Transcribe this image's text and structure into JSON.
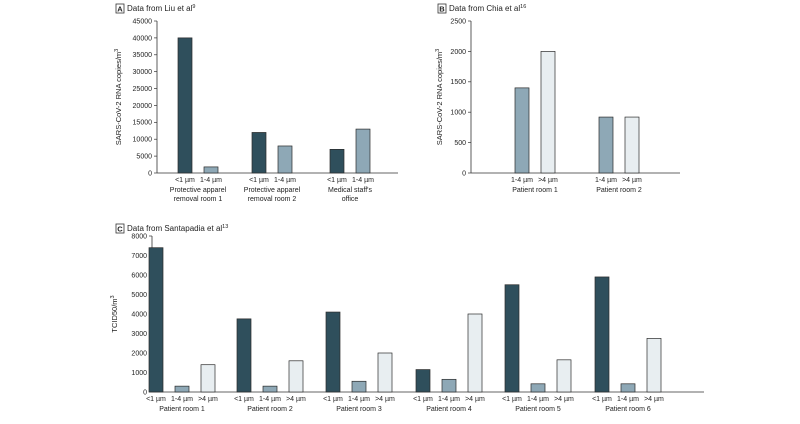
{
  "colors": {
    "lt1": "#2f4f5c",
    "r1to4": "#8ea8b6",
    "gt4": "#e8eef1",
    "outline": "#2b2b2b"
  },
  "chart_data": [
    {
      "panel": "A",
      "type": "bar",
      "title": "Data from Liu et al",
      "title_sup": "9",
      "ylabel": "SARS-CoV-2 RNA copies/m",
      "ylabel_sup": "3",
      "ylim": [
        0,
        45000
      ],
      "yticks": [
        0,
        5000,
        10000,
        15000,
        20000,
        25000,
        30000,
        35000,
        40000,
        45000
      ],
      "ytick_labels": [
        "0",
        "5000",
        "10000",
        "15000",
        "20000",
        "25000",
        "30000",
        "35000",
        "40000",
        "45000"
      ],
      "groups": [
        {
          "label_lines": [
            "Protective apparel",
            "removal room 1"
          ],
          "bars": [
            {
              "size": "<1 µm",
              "color": "lt1",
              "value": 40000
            },
            {
              "size": "1-4 µm",
              "color": "r1to4",
              "value": 1800
            }
          ]
        },
        {
          "label_lines": [
            "Protective apparel",
            "removal room 2"
          ],
          "bars": [
            {
              "size": "<1 µm",
              "color": "lt1",
              "value": 12000
            },
            {
              "size": "1-4 µm",
              "color": "r1to4",
              "value": 8000
            }
          ]
        },
        {
          "label_lines": [
            "Medical staff's",
            "office"
          ],
          "bars": [
            {
              "size": "<1 µm",
              "color": "lt1",
              "value": 7000
            },
            {
              "size": "1-4 µm",
              "color": "r1to4",
              "value": 13000
            }
          ]
        }
      ]
    },
    {
      "panel": "B",
      "type": "bar",
      "title": "Data from Chia et al",
      "title_sup": "16",
      "ylabel": "SARS-CoV-2 RNA copies/m",
      "ylabel_sup": "3",
      "ylim": [
        0,
        2500
      ],
      "yticks": [
        0,
        500,
        1000,
        1500,
        2000,
        2500
      ],
      "ytick_labels": [
        "0",
        "500",
        "1000",
        "1500",
        "2000",
        "2500"
      ],
      "groups": [
        {
          "label_lines": [
            "Patient room 1"
          ],
          "bars": [
            {
              "size": "1-4 µm",
              "color": "r1to4",
              "value": 1400
            },
            {
              "size": ">4 µm",
              "color": "gt4",
              "value": 2000
            }
          ]
        },
        {
          "label_lines": [
            "Patient room 2"
          ],
          "bars": [
            {
              "size": "1-4 µm",
              "color": "r1to4",
              "value": 920
            },
            {
              "size": ">4 µm",
              "color": "gt4",
              "value": 920
            }
          ]
        }
      ]
    },
    {
      "panel": "C",
      "type": "bar",
      "title": "Data from Santapadia et al",
      "title_sup": "13",
      "ylabel": "TCID50/m",
      "ylabel_sup": "3",
      "ylim": [
        0,
        8000
      ],
      "yticks": [
        0,
        1000,
        2000,
        3000,
        4000,
        5000,
        6000,
        7000,
        8000
      ],
      "ytick_labels": [
        "0",
        "1000",
        "2000",
        "3000",
        "4000",
        "5000",
        "6000",
        "7000",
        "8000"
      ],
      "groups": [
        {
          "label_lines": [
            "Patient room 1"
          ],
          "bars": [
            {
              "size": "<1 µm",
              "color": "lt1",
              "value": 7400
            },
            {
              "size": "1-4 µm",
              "color": "r1to4",
              "value": 300
            },
            {
              "size": ">4 µm",
              "color": "gt4",
              "value": 1400
            }
          ]
        },
        {
          "label_lines": [
            "Patient room 2"
          ],
          "bars": [
            {
              "size": "<1 µm",
              "color": "lt1",
              "value": 3750
            },
            {
              "size": "1-4 µm",
              "color": "r1to4",
              "value": 300
            },
            {
              "size": ">4 µm",
              "color": "gt4",
              "value": 1600
            }
          ]
        },
        {
          "label_lines": [
            "Patient room 3"
          ],
          "bars": [
            {
              "size": "<1 µm",
              "color": "lt1",
              "value": 4100
            },
            {
              "size": "1-4 µm",
              "color": "r1to4",
              "value": 550
            },
            {
              "size": ">4 µm",
              "color": "gt4",
              "value": 2000
            }
          ]
        },
        {
          "label_lines": [
            "Patient room 4"
          ],
          "bars": [
            {
              "size": "<1 µm",
              "color": "lt1",
              "value": 1150
            },
            {
              "size": "1-4 µm",
              "color": "r1to4",
              "value": 650
            },
            {
              "size": ">4 µm",
              "color": "gt4",
              "value": 4000
            }
          ]
        },
        {
          "label_lines": [
            "Patient room 5"
          ],
          "bars": [
            {
              "size": "<1 µm",
              "color": "lt1",
              "value": 5500
            },
            {
              "size": "1-4 µm",
              "color": "r1to4",
              "value": 420
            },
            {
              "size": ">4 µm",
              "color": "gt4",
              "value": 1650
            }
          ]
        },
        {
          "label_lines": [
            "Patient room 6"
          ],
          "bars": [
            {
              "size": "<1 µm",
              "color": "lt1",
              "value": 5900
            },
            {
              "size": "1-4 µm",
              "color": "r1to4",
              "value": 420
            },
            {
              "size": ">4 µm",
              "color": "gt4",
              "value": 2750
            }
          ]
        }
      ]
    }
  ]
}
